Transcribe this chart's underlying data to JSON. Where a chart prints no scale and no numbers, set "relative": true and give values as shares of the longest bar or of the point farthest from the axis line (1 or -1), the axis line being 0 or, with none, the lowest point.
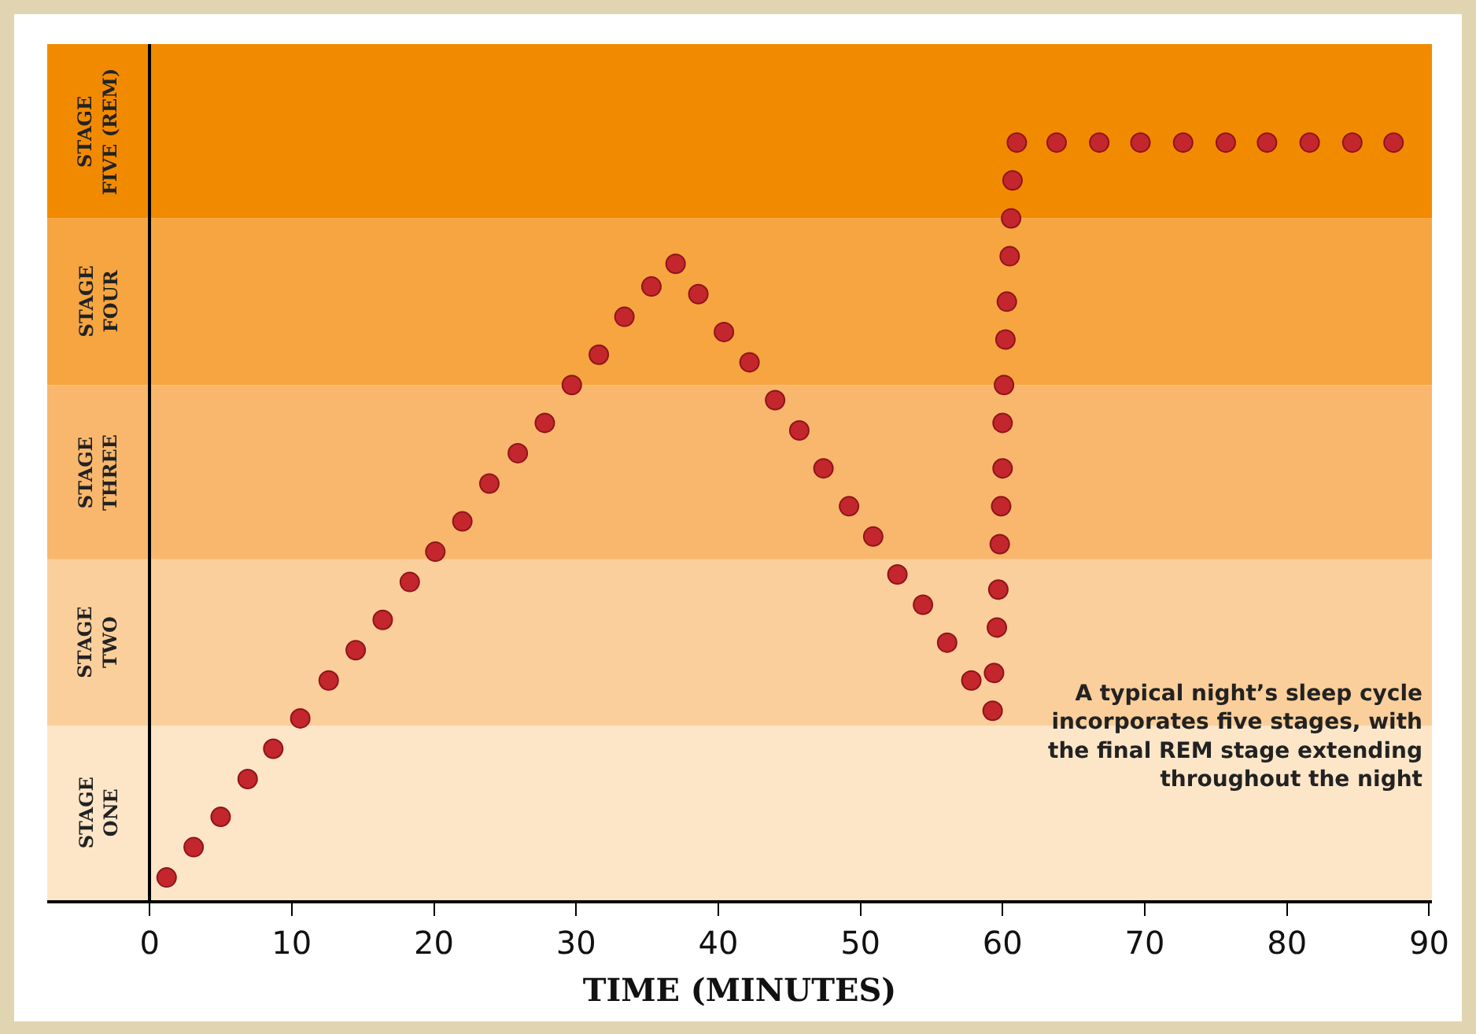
{
  "chart_data": {
    "type": "scatter",
    "relative": true,
    "xlabel": "TIME (MINUTES)",
    "marker": "circle",
    "xlim": [
      -7.2,
      90.2
    ],
    "xticks": [
      0,
      10,
      20,
      30,
      40,
      50,
      60,
      70,
      80,
      90
    ],
    "x": [
      1.2,
      3.1,
      5.0,
      6.9,
      8.7,
      10.6,
      12.6,
      14.5,
      16.4,
      18.3,
      20.1,
      22.0,
      23.9,
      25.9,
      27.8,
      29.7,
      31.6,
      33.4,
      35.3,
      37.0,
      38.6,
      40.4,
      42.2,
      44.0,
      45.7,
      47.4,
      49.2,
      50.9,
      52.6,
      54.4,
      56.1,
      57.8,
      59.3,
      59.4,
      59.6,
      59.7,
      59.8,
      59.9,
      60.0,
      60.0,
      60.1,
      60.2,
      60.3,
      60.5,
      60.6,
      60.7,
      61.0,
      63.8,
      66.8,
      69.7,
      72.7,
      75.7,
      78.6,
      81.6,
      84.6,
      87.5
    ],
    "series": [
      {
        "color": "#c4262e",
        "values": [
          0.03,
          0.07,
          0.11,
          0.16,
          0.2,
          0.24,
          0.29,
          0.33,
          0.37,
          0.42,
          0.46,
          0.5,
          0.55,
          0.59,
          0.63,
          0.68,
          0.72,
          0.77,
          0.81,
          0.84,
          0.8,
          0.75,
          0.71,
          0.66,
          0.62,
          0.57,
          0.52,
          0.48,
          0.43,
          0.39,
          0.34,
          0.29,
          0.25,
          0.3,
          0.36,
          0.41,
          0.47,
          0.52,
          0.57,
          0.63,
          0.68,
          0.74,
          0.79,
          0.85,
          0.9,
          0.95,
          1,
          1,
          1,
          1,
          1,
          1,
          1,
          1,
          1,
          1
        ]
      }
    ],
    "bands": [
      {
        "axis": "y",
        "from": 0,
        "to": 0.23,
        "label": "STAGE ONE",
        "color": "#fde6c8"
      },
      {
        "axis": "y",
        "from": 0.23,
        "to": 0.45,
        "label": "STAGE TWO",
        "color": "#fbcf9b"
      },
      {
        "axis": "y",
        "from": 0.45,
        "to": 0.68,
        "label": "STAGE THREE",
        "color": "#f8b76c"
      },
      {
        "axis": "y",
        "from": 0.68,
        "to": 0.9,
        "label": "STAGE FOUR",
        "color": "#f6a540"
      },
      {
        "axis": "y",
        "from": 0.9,
        "to": 1.13,
        "label": "STAGE FIVE (REM)",
        "color": "#f28a00"
      }
    ],
    "annotations": [
      "A typical night’s sleep cycle incorporates five stages, with the final REM stage extending throughout the night"
    ]
  }
}
